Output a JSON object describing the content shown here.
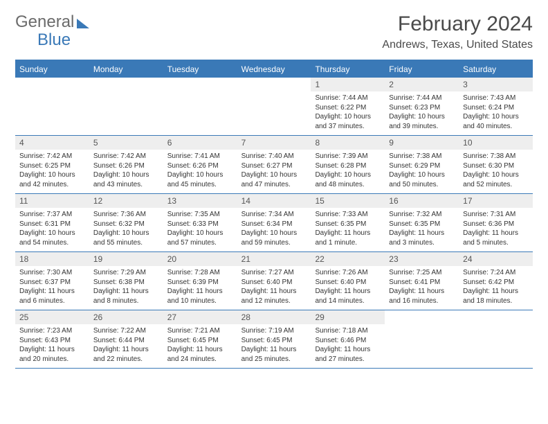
{
  "brand": {
    "part1": "General",
    "part2": "Blue"
  },
  "title": "February 2024",
  "location": "Andrews, Texas, United States",
  "day_headers": [
    "Sunday",
    "Monday",
    "Tuesday",
    "Wednesday",
    "Thursday",
    "Friday",
    "Saturday"
  ],
  "colors": {
    "accent": "#3a79b7",
    "header_text": "#ffffff",
    "daynum_bg": "#eeeeee",
    "body_text": "#333333",
    "title_text": "#4a4a4a",
    "logo_gray": "#6b6b6b"
  },
  "weeks": [
    [
      {
        "empty": true
      },
      {
        "empty": true
      },
      {
        "empty": true
      },
      {
        "empty": true
      },
      {
        "num": "1",
        "sunrise": "Sunrise: 7:44 AM",
        "sunset": "Sunset: 6:22 PM",
        "daylight": "Daylight: 10 hours and 37 minutes."
      },
      {
        "num": "2",
        "sunrise": "Sunrise: 7:44 AM",
        "sunset": "Sunset: 6:23 PM",
        "daylight": "Daylight: 10 hours and 39 minutes."
      },
      {
        "num": "3",
        "sunrise": "Sunrise: 7:43 AM",
        "sunset": "Sunset: 6:24 PM",
        "daylight": "Daylight: 10 hours and 40 minutes."
      }
    ],
    [
      {
        "num": "4",
        "sunrise": "Sunrise: 7:42 AM",
        "sunset": "Sunset: 6:25 PM",
        "daylight": "Daylight: 10 hours and 42 minutes."
      },
      {
        "num": "5",
        "sunrise": "Sunrise: 7:42 AM",
        "sunset": "Sunset: 6:26 PM",
        "daylight": "Daylight: 10 hours and 43 minutes."
      },
      {
        "num": "6",
        "sunrise": "Sunrise: 7:41 AM",
        "sunset": "Sunset: 6:26 PM",
        "daylight": "Daylight: 10 hours and 45 minutes."
      },
      {
        "num": "7",
        "sunrise": "Sunrise: 7:40 AM",
        "sunset": "Sunset: 6:27 PM",
        "daylight": "Daylight: 10 hours and 47 minutes."
      },
      {
        "num": "8",
        "sunrise": "Sunrise: 7:39 AM",
        "sunset": "Sunset: 6:28 PM",
        "daylight": "Daylight: 10 hours and 48 minutes."
      },
      {
        "num": "9",
        "sunrise": "Sunrise: 7:38 AM",
        "sunset": "Sunset: 6:29 PM",
        "daylight": "Daylight: 10 hours and 50 minutes."
      },
      {
        "num": "10",
        "sunrise": "Sunrise: 7:38 AM",
        "sunset": "Sunset: 6:30 PM",
        "daylight": "Daylight: 10 hours and 52 minutes."
      }
    ],
    [
      {
        "num": "11",
        "sunrise": "Sunrise: 7:37 AM",
        "sunset": "Sunset: 6:31 PM",
        "daylight": "Daylight: 10 hours and 54 minutes."
      },
      {
        "num": "12",
        "sunrise": "Sunrise: 7:36 AM",
        "sunset": "Sunset: 6:32 PM",
        "daylight": "Daylight: 10 hours and 55 minutes."
      },
      {
        "num": "13",
        "sunrise": "Sunrise: 7:35 AM",
        "sunset": "Sunset: 6:33 PM",
        "daylight": "Daylight: 10 hours and 57 minutes."
      },
      {
        "num": "14",
        "sunrise": "Sunrise: 7:34 AM",
        "sunset": "Sunset: 6:34 PM",
        "daylight": "Daylight: 10 hours and 59 minutes."
      },
      {
        "num": "15",
        "sunrise": "Sunrise: 7:33 AM",
        "sunset": "Sunset: 6:35 PM",
        "daylight": "Daylight: 11 hours and 1 minute."
      },
      {
        "num": "16",
        "sunrise": "Sunrise: 7:32 AM",
        "sunset": "Sunset: 6:35 PM",
        "daylight": "Daylight: 11 hours and 3 minutes."
      },
      {
        "num": "17",
        "sunrise": "Sunrise: 7:31 AM",
        "sunset": "Sunset: 6:36 PM",
        "daylight": "Daylight: 11 hours and 5 minutes."
      }
    ],
    [
      {
        "num": "18",
        "sunrise": "Sunrise: 7:30 AM",
        "sunset": "Sunset: 6:37 PM",
        "daylight": "Daylight: 11 hours and 6 minutes."
      },
      {
        "num": "19",
        "sunrise": "Sunrise: 7:29 AM",
        "sunset": "Sunset: 6:38 PM",
        "daylight": "Daylight: 11 hours and 8 minutes."
      },
      {
        "num": "20",
        "sunrise": "Sunrise: 7:28 AM",
        "sunset": "Sunset: 6:39 PM",
        "daylight": "Daylight: 11 hours and 10 minutes."
      },
      {
        "num": "21",
        "sunrise": "Sunrise: 7:27 AM",
        "sunset": "Sunset: 6:40 PM",
        "daylight": "Daylight: 11 hours and 12 minutes."
      },
      {
        "num": "22",
        "sunrise": "Sunrise: 7:26 AM",
        "sunset": "Sunset: 6:40 PM",
        "daylight": "Daylight: 11 hours and 14 minutes."
      },
      {
        "num": "23",
        "sunrise": "Sunrise: 7:25 AM",
        "sunset": "Sunset: 6:41 PM",
        "daylight": "Daylight: 11 hours and 16 minutes."
      },
      {
        "num": "24",
        "sunrise": "Sunrise: 7:24 AM",
        "sunset": "Sunset: 6:42 PM",
        "daylight": "Daylight: 11 hours and 18 minutes."
      }
    ],
    [
      {
        "num": "25",
        "sunrise": "Sunrise: 7:23 AM",
        "sunset": "Sunset: 6:43 PM",
        "daylight": "Daylight: 11 hours and 20 minutes."
      },
      {
        "num": "26",
        "sunrise": "Sunrise: 7:22 AM",
        "sunset": "Sunset: 6:44 PM",
        "daylight": "Daylight: 11 hours and 22 minutes."
      },
      {
        "num": "27",
        "sunrise": "Sunrise: 7:21 AM",
        "sunset": "Sunset: 6:45 PM",
        "daylight": "Daylight: 11 hours and 24 minutes."
      },
      {
        "num": "28",
        "sunrise": "Sunrise: 7:19 AM",
        "sunset": "Sunset: 6:45 PM",
        "daylight": "Daylight: 11 hours and 25 minutes."
      },
      {
        "num": "29",
        "sunrise": "Sunrise: 7:18 AM",
        "sunset": "Sunset: 6:46 PM",
        "daylight": "Daylight: 11 hours and 27 minutes."
      },
      {
        "empty": true
      },
      {
        "empty": true
      }
    ]
  ]
}
